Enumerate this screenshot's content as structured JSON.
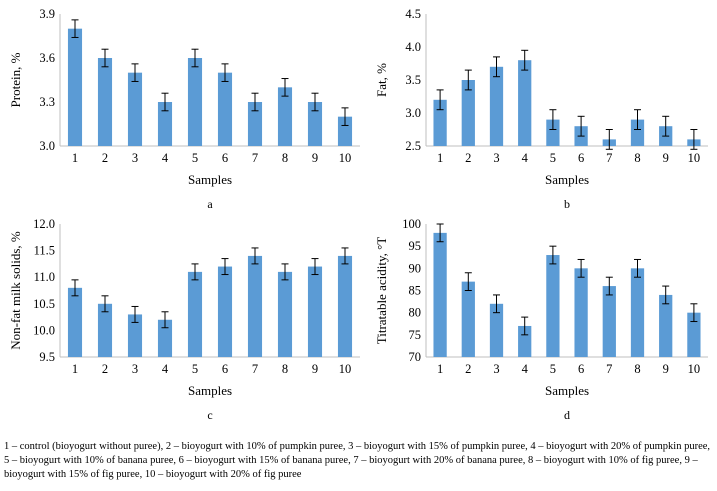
{
  "chart_data": [
    {
      "type": "bar",
      "panel_label": "a",
      "categories": [
        "1",
        "2",
        "3",
        "4",
        "5",
        "6",
        "7",
        "8",
        "9",
        "10"
      ],
      "values": [
        3.8,
        3.6,
        3.5,
        3.3,
        3.6,
        3.5,
        3.3,
        3.4,
        3.3,
        3.2
      ],
      "error": [
        0.06,
        0.06,
        0.06,
        0.06,
        0.06,
        0.06,
        0.06,
        0.06,
        0.06,
        0.06
      ],
      "xlabel": "Samples",
      "ylabel": "Protein, %",
      "ylim": [
        3.0,
        3.9
      ],
      "yticks": [
        "3.0",
        "3.3",
        "3.6",
        "3.9"
      ],
      "grid": false,
      "bar_color": "#5b9bd5"
    },
    {
      "type": "bar",
      "panel_label": "b",
      "categories": [
        "1",
        "2",
        "3",
        "4",
        "5",
        "6",
        "7",
        "8",
        "9",
        "10"
      ],
      "values": [
        3.2,
        3.5,
        3.7,
        3.8,
        2.9,
        2.8,
        2.6,
        2.9,
        2.8,
        2.6
      ],
      "error": [
        0.15,
        0.15,
        0.15,
        0.15,
        0.15,
        0.15,
        0.15,
        0.15,
        0.15,
        0.15
      ],
      "xlabel": "Samples",
      "ylabel": "Fat, %",
      "ylim": [
        2.5,
        4.5
      ],
      "yticks": [
        "2.5",
        "3.0",
        "3.5",
        "4.0",
        "4.5"
      ],
      "grid": false,
      "bar_color": "#5b9bd5"
    },
    {
      "type": "bar",
      "panel_label": "c",
      "categories": [
        "1",
        "2",
        "3",
        "4",
        "5",
        "6",
        "7",
        "8",
        "9",
        "10"
      ],
      "values": [
        10.8,
        10.5,
        10.3,
        10.2,
        11.1,
        11.2,
        11.4,
        11.1,
        11.2,
        11.4
      ],
      "error": [
        0.15,
        0.15,
        0.15,
        0.15,
        0.15,
        0.15,
        0.15,
        0.15,
        0.15,
        0.15
      ],
      "xlabel": "Samples",
      "ylabel": "Non-fat milk solids, %",
      "ylim": [
        9.5,
        12.0
      ],
      "yticks": [
        "9.5",
        "10.0",
        "10.5",
        "11.0",
        "11.5",
        "12.0"
      ],
      "grid": false,
      "bar_color": "#5b9bd5"
    },
    {
      "type": "bar",
      "panel_label": "d",
      "categories": [
        "1",
        "2",
        "3",
        "4",
        "5",
        "6",
        "7",
        "8",
        "9",
        "10"
      ],
      "values": [
        98,
        87,
        82,
        77,
        93,
        90,
        86,
        90,
        84,
        80
      ],
      "error": [
        2,
        2,
        2,
        2,
        2,
        2,
        2,
        2,
        2,
        2
      ],
      "xlabel": "Samples",
      "ylabel": "Titratable acidity, °T",
      "ylim": [
        70,
        100
      ],
      "yticks": [
        "70",
        "75",
        "80",
        "85",
        "90",
        "95",
        "100"
      ],
      "grid": false,
      "bar_color": "#5b9bd5"
    }
  ],
  "caption": "1 – control (bioyogurt without puree), 2 – bioyogurt with 10% of pumpkin puree, 3 – bioyogurt with 15% of pumpkin puree, 4 – bioyogurt with 20% of pumpkin puree, 5 – bioyogurt with 10% of banana puree, 6 – bioyogurt with 15% of banana puree, 7 – bioyogurt with 20% of banana puree, 8 – bioyogurt with 10% of fig puree, 9 – bioyogurt with 15% of fig puree, 10 – bioyogurt with 20% of fig puree"
}
